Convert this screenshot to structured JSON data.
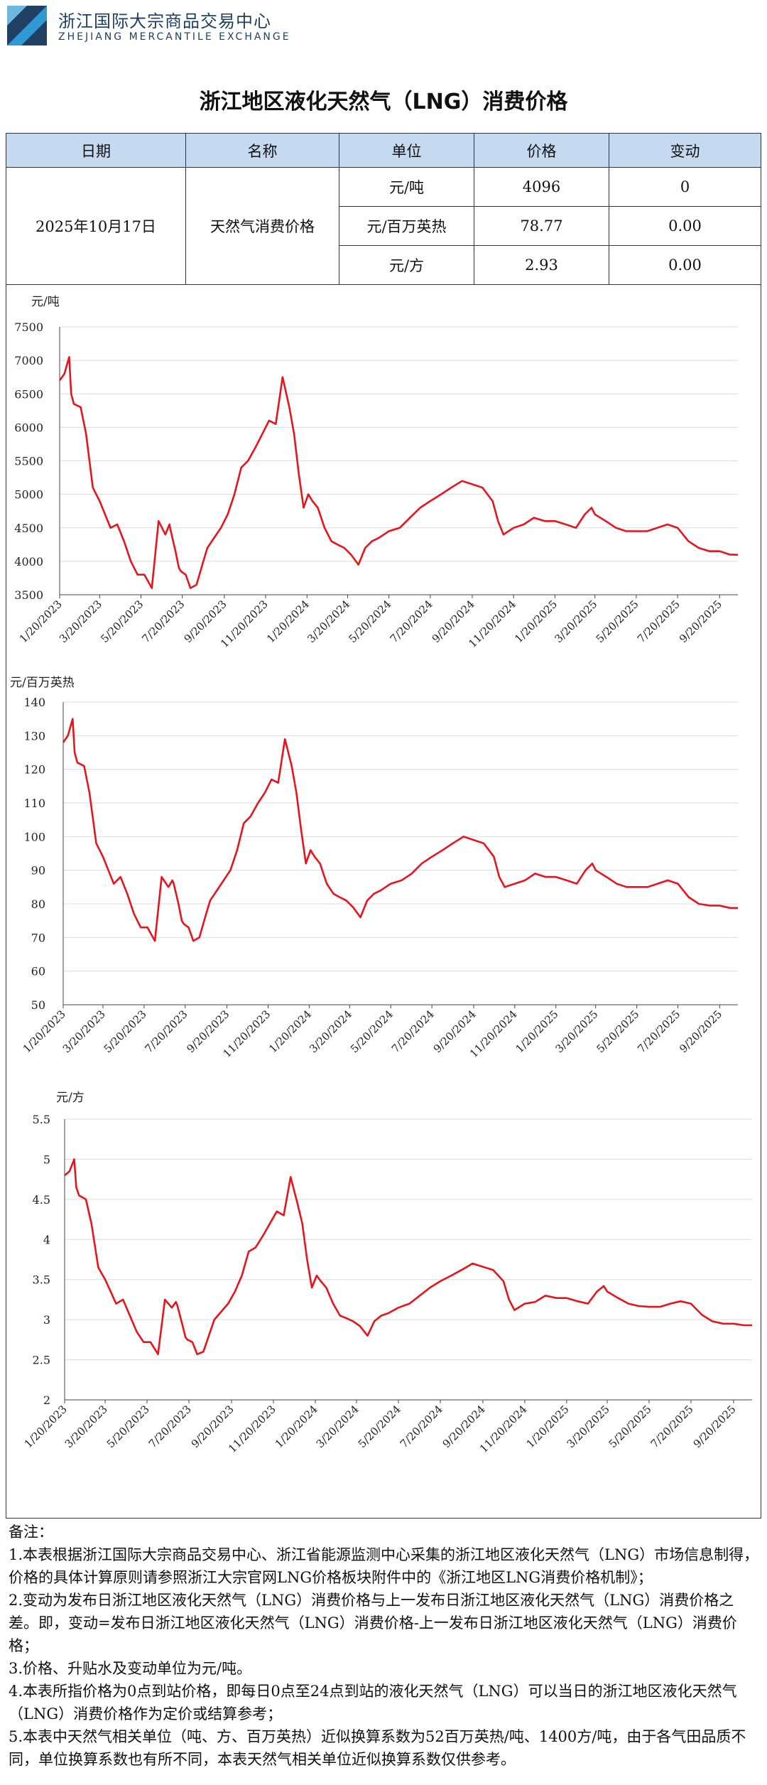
{
  "header": {
    "org_name_cn": "浙江国际大宗商品交易中心",
    "org_name_en": "ZHEJIANG MERCANTILE EXCHANGE",
    "brand_colors": {
      "primary": "#1f3f63",
      "accent": "#2d9ad6"
    }
  },
  "title": "浙江地区液化天然气（LNG）消费价格",
  "table": {
    "headers": [
      "日期",
      "名称",
      "单位",
      "价格",
      "变动"
    ],
    "date": "2025年10月17日",
    "name": "天然气消费价格",
    "rows": [
      {
        "unit": "元/吨",
        "price": "4096",
        "change": "0"
      },
      {
        "unit": "元/百万英热",
        "price": "78.77",
        "change": "0.00"
      },
      {
        "unit": "元/方",
        "price": "2.93",
        "change": "0.00"
      }
    ]
  },
  "chart_data": [
    {
      "type": "line",
      "unit_label": "元/吨",
      "color": "#e8141c",
      "ylim": [
        3500,
        7500
      ],
      "yticks": [
        3500,
        4000,
        4500,
        5000,
        5500,
        6000,
        6500,
        7000,
        7500
      ],
      "xlim": [
        "2023-01-20",
        "2025-10-17"
      ],
      "xticks": [
        "1/20/2023",
        "3/20/2023",
        "5/20/2023",
        "7/20/2023",
        "9/20/2023",
        "11/20/2023",
        "1/20/2024",
        "3/20/2024",
        "5/20/2024",
        "7/20/2024",
        "9/20/2024",
        "11/20/2024",
        "1/20/2025",
        "3/20/2025",
        "5/20/2025",
        "7/20/2025",
        "9/20/2025"
      ],
      "grid": true,
      "series": [
        {
          "x": [
            "2023-01-20",
            "2023-01-27",
            "2023-02-03",
            "2023-02-06",
            "2023-02-10",
            "2023-02-20",
            "2023-02-28",
            "2023-03-10",
            "2023-03-20",
            "2023-03-28",
            "2023-04-05",
            "2023-04-15",
            "2023-04-25",
            "2023-05-05",
            "2023-05-15",
            "2023-05-25",
            "2023-06-05",
            "2023-06-15",
            "2023-06-25",
            "2023-07-01",
            "2023-07-03",
            "2023-07-10",
            "2023-07-15",
            "2023-07-18",
            "2023-07-25",
            "2023-08-01",
            "2023-08-10",
            "2023-08-20",
            "2023-08-26",
            "2023-09-05",
            "2023-09-15",
            "2023-09-25",
            "2023-10-05",
            "2023-10-15",
            "2023-10-25",
            "2023-11-05",
            "2023-11-15",
            "2023-11-25",
            "2023-12-05",
            "2023-12-15",
            "2023-12-25",
            "2024-01-01",
            "2024-01-08",
            "2024-01-15",
            "2024-01-22",
            "2024-01-28",
            "2024-02-05",
            "2024-02-15",
            "2024-02-25",
            "2024-03-05",
            "2024-03-15",
            "2024-03-25",
            "2024-04-05",
            "2024-04-15",
            "2024-04-25",
            "2024-05-05",
            "2024-05-20",
            "2024-06-05",
            "2024-06-20",
            "2024-07-05",
            "2024-07-20",
            "2024-08-05",
            "2024-08-20",
            "2024-09-05",
            "2024-09-20",
            "2024-10-05",
            "2024-10-20",
            "2024-10-28",
            "2024-11-05",
            "2024-11-20",
            "2024-12-05",
            "2024-12-20",
            "2025-01-05",
            "2025-01-20",
            "2025-02-05",
            "2025-02-20",
            "2025-03-05",
            "2025-03-15",
            "2025-03-20",
            "2025-04-05",
            "2025-04-20",
            "2025-05-05",
            "2025-05-20",
            "2025-06-05",
            "2025-06-20",
            "2025-07-05",
            "2025-07-20",
            "2025-08-05",
            "2025-08-20",
            "2025-09-05",
            "2025-09-20",
            "2025-10-05",
            "2025-10-17"
          ],
          "y": [
            6700,
            6800,
            7050,
            6500,
            6350,
            6300,
            5900,
            5100,
            4900,
            4700,
            4500,
            4550,
            4300,
            4000,
            3800,
            3800,
            3600,
            4600,
            4400,
            4550,
            4450,
            4150,
            3900,
            3850,
            3800,
            3600,
            3650,
            4000,
            4200,
            4350,
            4500,
            4700,
            5000,
            5400,
            5500,
            5700,
            5900,
            6100,
            6050,
            6750,
            6300,
            5900,
            5300,
            4800,
            5000,
            4900,
            4800,
            4500,
            4300,
            4250,
            4200,
            4100,
            3950,
            4200,
            4300,
            4350,
            4450,
            4500,
            4650,
            4800,
            4900,
            5000,
            5100,
            5200,
            5150,
            5100,
            4900,
            4600,
            4400,
            4500,
            4550,
            4650,
            4600,
            4600,
            4550,
            4500,
            4700,
            4800,
            4700,
            4600,
            4500,
            4450,
            4450,
            4450,
            4500,
            4550,
            4500,
            4300,
            4200,
            4150,
            4150,
            4100,
            4096
          ]
        }
      ]
    },
    {
      "type": "line",
      "unit_label": "元/百万英热",
      "color": "#e8141c",
      "ylim": [
        50,
        140
      ],
      "yticks": [
        50,
        60,
        70,
        80,
        90,
        100,
        110,
        120,
        130,
        140
      ],
      "xlim": [
        "2023-01-20",
        "2025-10-17"
      ],
      "xticks": [
        "1/20/2023",
        "3/20/2023",
        "5/20/2023",
        "7/20/2023",
        "9/20/2023",
        "11/20/2023",
        "1/20/2024",
        "3/20/2024",
        "5/20/2024",
        "7/20/2024",
        "9/20/2024",
        "11/20/2024",
        "1/20/2025",
        "3/20/2025",
        "5/20/2025",
        "7/20/2025",
        "9/20/2025"
      ],
      "grid": true,
      "series": [
        {
          "x": [
            "2023-01-20",
            "2023-01-27",
            "2023-02-03",
            "2023-02-06",
            "2023-02-10",
            "2023-02-20",
            "2023-02-28",
            "2023-03-10",
            "2023-03-20",
            "2023-03-28",
            "2023-04-05",
            "2023-04-15",
            "2023-04-25",
            "2023-05-05",
            "2023-05-15",
            "2023-05-25",
            "2023-06-05",
            "2023-06-15",
            "2023-06-25",
            "2023-07-01",
            "2023-07-03",
            "2023-07-10",
            "2023-07-15",
            "2023-07-18",
            "2023-07-25",
            "2023-08-01",
            "2023-08-10",
            "2023-08-20",
            "2023-08-26",
            "2023-09-05",
            "2023-09-15",
            "2023-09-25",
            "2023-10-05",
            "2023-10-15",
            "2023-10-25",
            "2023-11-05",
            "2023-11-15",
            "2023-11-25",
            "2023-12-05",
            "2023-12-15",
            "2023-12-25",
            "2024-01-01",
            "2024-01-08",
            "2024-01-15",
            "2024-01-22",
            "2024-01-28",
            "2024-02-05",
            "2024-02-15",
            "2024-02-25",
            "2024-03-05",
            "2024-03-15",
            "2024-03-25",
            "2024-04-05",
            "2024-04-15",
            "2024-04-25",
            "2024-05-05",
            "2024-05-20",
            "2024-06-05",
            "2024-06-20",
            "2024-07-05",
            "2024-07-20",
            "2024-08-05",
            "2024-08-20",
            "2024-09-05",
            "2024-09-20",
            "2024-10-05",
            "2024-10-20",
            "2024-10-28",
            "2024-11-05",
            "2024-11-20",
            "2024-12-05",
            "2024-12-20",
            "2025-01-05",
            "2025-01-20",
            "2025-02-05",
            "2025-02-20",
            "2025-03-05",
            "2025-03-15",
            "2025-03-20",
            "2025-04-05",
            "2025-04-20",
            "2025-05-05",
            "2025-05-20",
            "2025-06-05",
            "2025-06-20",
            "2025-07-05",
            "2025-07-20",
            "2025-08-05",
            "2025-08-20",
            "2025-09-05",
            "2025-09-20",
            "2025-10-05",
            "2025-10-17"
          ],
          "y": [
            128,
            130,
            135,
            125,
            122,
            121,
            113,
            98,
            94,
            90,
            86,
            88,
            83,
            77,
            73,
            73,
            69,
            88,
            85,
            87,
            86,
            80,
            75,
            74,
            73,
            69,
            70,
            77,
            81,
            84,
            87,
            90,
            96,
            104,
            106,
            110,
            113,
            117,
            116,
            129,
            121,
            113,
            102,
            92,
            96,
            94,
            92,
            86,
            83,
            82,
            81,
            79,
            76,
            81,
            83,
            84,
            86,
            87,
            89,
            92,
            94,
            96,
            98,
            100,
            99,
            98,
            94,
            88,
            85,
            86,
            87,
            89,
            88,
            88,
            87,
            86,
            90,
            92,
            90,
            88,
            86,
            85,
            85,
            85,
            86,
            87,
            86,
            82,
            80,
            79.5,
            79.5,
            78.8,
            78.77
          ]
        }
      ]
    },
    {
      "type": "line",
      "unit_label": "元/方",
      "color": "#e8141c",
      "ylim": [
        2,
        5.5
      ],
      "yticks": [
        2,
        2.5,
        3,
        3.5,
        4,
        4.5,
        5,
        5.5
      ],
      "xlim": [
        "2023-01-20",
        "2025-10-17"
      ],
      "xticks": [
        "1/20/2023",
        "3/20/2023",
        "5/20/2023",
        "7/20/2023",
        "9/20/2023",
        "11/20/2023",
        "1/20/2024",
        "3/20/2024",
        "5/20/2024",
        "7/20/2024",
        "9/20/2024",
        "11/20/2024",
        "1/20/2025",
        "3/20/2025",
        "5/20/2025",
        "7/20/2025",
        "9/20/2025"
      ],
      "grid": true,
      "series": [
        {
          "x": [
            "2023-01-20",
            "2023-01-27",
            "2023-02-03",
            "2023-02-06",
            "2023-02-10",
            "2023-02-20",
            "2023-02-28",
            "2023-03-10",
            "2023-03-20",
            "2023-03-28",
            "2023-04-05",
            "2023-04-15",
            "2023-04-25",
            "2023-05-05",
            "2023-05-15",
            "2023-05-25",
            "2023-06-05",
            "2023-06-15",
            "2023-06-25",
            "2023-07-01",
            "2023-07-03",
            "2023-07-10",
            "2023-07-15",
            "2023-07-18",
            "2023-07-25",
            "2023-08-01",
            "2023-08-10",
            "2023-08-20",
            "2023-08-26",
            "2023-09-05",
            "2023-09-15",
            "2023-09-25",
            "2023-10-05",
            "2023-10-15",
            "2023-10-25",
            "2023-11-05",
            "2023-11-15",
            "2023-11-25",
            "2023-12-05",
            "2023-12-15",
            "2023-12-25",
            "2024-01-01",
            "2024-01-08",
            "2024-01-15",
            "2024-01-22",
            "2024-01-28",
            "2024-02-05",
            "2024-02-15",
            "2024-02-25",
            "2024-03-05",
            "2024-03-15",
            "2024-03-25",
            "2024-04-05",
            "2024-04-15",
            "2024-04-25",
            "2024-05-05",
            "2024-05-20",
            "2024-06-05",
            "2024-06-20",
            "2024-07-05",
            "2024-07-20",
            "2024-08-05",
            "2024-08-20",
            "2024-09-05",
            "2024-09-20",
            "2024-10-05",
            "2024-10-20",
            "2024-10-28",
            "2024-11-05",
            "2024-11-20",
            "2024-12-05",
            "2024-12-20",
            "2025-01-05",
            "2025-01-20",
            "2025-02-05",
            "2025-02-20",
            "2025-03-05",
            "2025-03-15",
            "2025-03-20",
            "2025-04-05",
            "2025-04-20",
            "2025-05-05",
            "2025-05-20",
            "2025-06-05",
            "2025-06-20",
            "2025-07-05",
            "2025-07-20",
            "2025-08-05",
            "2025-08-20",
            "2025-09-05",
            "2025-09-20",
            "2025-10-05",
            "2025-10-17"
          ],
          "y": [
            4.8,
            4.85,
            5.0,
            4.65,
            4.55,
            4.5,
            4.2,
            3.65,
            3.5,
            3.35,
            3.2,
            3.25,
            3.05,
            2.85,
            2.72,
            2.72,
            2.57,
            3.25,
            3.15,
            3.22,
            3.18,
            2.95,
            2.78,
            2.75,
            2.72,
            2.57,
            2.6,
            2.85,
            3.0,
            3.1,
            3.2,
            3.35,
            3.55,
            3.85,
            3.9,
            4.05,
            4.2,
            4.35,
            4.3,
            4.78,
            4.45,
            4.2,
            3.75,
            3.4,
            3.55,
            3.48,
            3.4,
            3.2,
            3.05,
            3.02,
            2.98,
            2.92,
            2.8,
            2.98,
            3.05,
            3.08,
            3.15,
            3.2,
            3.3,
            3.4,
            3.48,
            3.55,
            3.62,
            3.7,
            3.66,
            3.62,
            3.48,
            3.25,
            3.12,
            3.2,
            3.22,
            3.3,
            3.27,
            3.27,
            3.23,
            3.2,
            3.35,
            3.42,
            3.35,
            3.27,
            3.2,
            3.17,
            3.16,
            3.16,
            3.2,
            3.23,
            3.2,
            3.06,
            2.98,
            2.95,
            2.95,
            2.93,
            2.93
          ]
        }
      ]
    }
  ],
  "notes": {
    "title": "备注：",
    "items": [
      "1.本表根据浙江国际大宗商品交易中心、浙江省能源监测中心采集的浙江地区液化天然气（LNG）市场信息制得，价格的具体计算原则请参照浙江大宗官网LNG价格板块附件中的《浙江地区LNG消费价格机制》；",
      "2.变动为发布日浙江地区液化天然气（LNG）消费价格与上一发布日浙江地区液化天然气（LNG）消费价格之差。即，变动=发布日浙江地区液化天然气（LNG）消费价格-上一发布日浙江地区液化天然气（LNG）消费价格；",
      "3.价格、升贴水及变动单位为元/吨。",
      "4.本表所指价格为0点到站价格，即每日0点至24点到站的液化天然气（LNG）可以当日的浙江地区液化天然气（LNG）消费价格作为定价或结算参考；",
      "5.本表中天然气相关单位（吨、方、百万英热）近似换算系数为52百万英热/吨、1400方/吨，由于各气田品质不同，单位换算系数也有所不同，本表天然气相关单位近似换算系数仅供参考。"
    ]
  }
}
